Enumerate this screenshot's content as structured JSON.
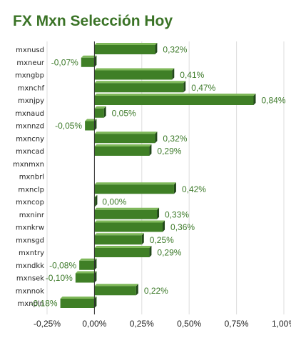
{
  "chart_data": {
    "type": "bar",
    "orientation": "horizontal",
    "title": "FX Mxn Selección Hoy",
    "categories": [
      "mxnusd",
      "mxneur",
      "mxngbp",
      "mxnchf",
      "mxnjpy",
      "mxnaud",
      "mxnnzd",
      "mxncny",
      "mxncad",
      "mxnmxn",
      "mxnbrl",
      "mxnclp",
      "mxncop",
      "mxninr",
      "mxnkrw",
      "mxnsgd",
      "mxntry",
      "mxndkk",
      "mxnsek",
      "mxnnok",
      "mxnpln"
    ],
    "values": [
      0.32,
      -0.07,
      0.41,
      0.47,
      0.84,
      0.05,
      -0.05,
      0.32,
      0.29,
      null,
      null,
      0.42,
      0.0,
      0.33,
      0.36,
      0.25,
      0.29,
      -0.08,
      -0.1,
      0.22,
      -0.18
    ],
    "value_labels": [
      "0,32%",
      "-0,07%",
      "0,41%",
      "0,47%",
      "0,84%",
      "0,05%",
      "-0,05%",
      "0,32%",
      "0,29%",
      "",
      "",
      "0,42%",
      "0,00%",
      "0,33%",
      "0,36%",
      "0,25%",
      "0,29%",
      "-0,08%",
      "-0,10%",
      "0,22%",
      "-0,18%"
    ],
    "xlim": [
      -0.25,
      1.0
    ],
    "xticks": [
      -0.25,
      0,
      0.25,
      0.5,
      0.75,
      1.0
    ],
    "xtick_labels": [
      "-0,25%",
      "0,00%",
      "0,25%",
      "0,50%",
      "0,75%",
      "1,00%"
    ],
    "grid": true,
    "colors": {
      "bar": "#3f7f26",
      "bar_top": "#7fb85a",
      "bar_side": "#22481a",
      "label": "#3d7a2a",
      "title": "#3a7326",
      "grid": "#dddddd",
      "axis": "#333333"
    }
  }
}
